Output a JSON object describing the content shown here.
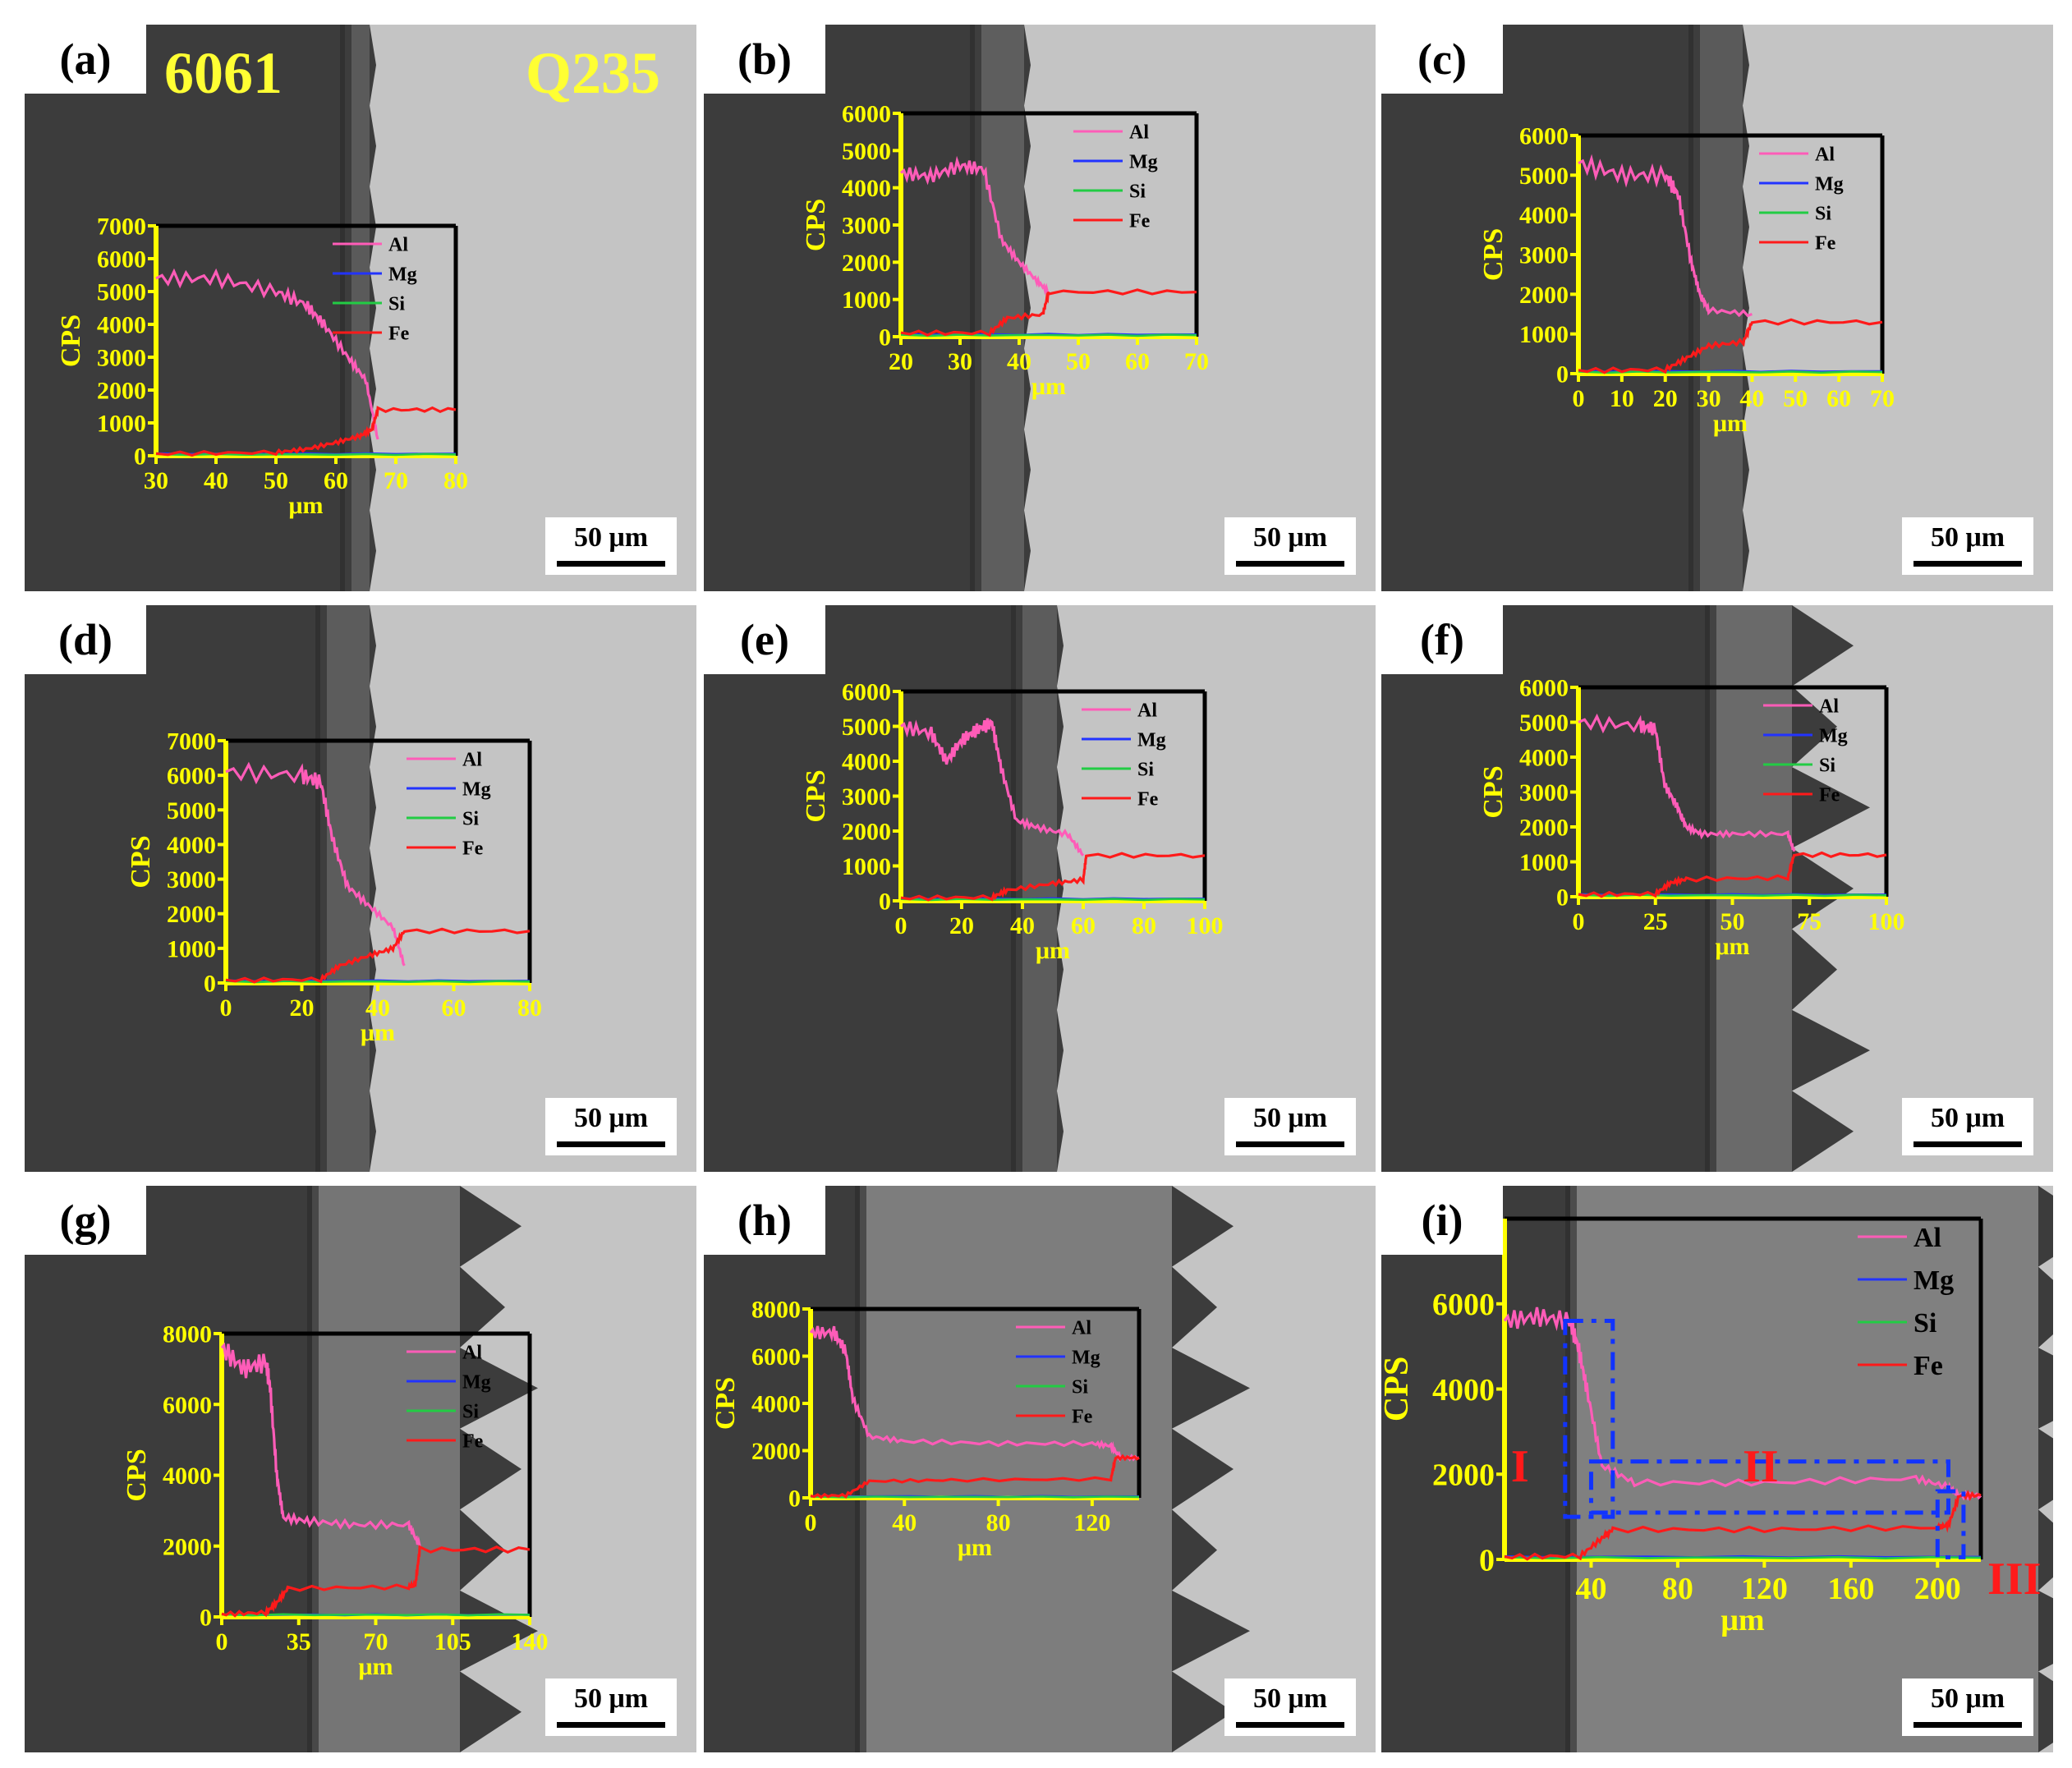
{
  "figure": {
    "labels": {
      "alloy_left": "6061",
      "alloy_right": "Q235"
    },
    "colors": {
      "Al": "#ff5cb8",
      "Mg": "#2233ff",
      "Si": "#22cc44",
      "Fe": "#ff1a1a",
      "axis": "#ffff00"
    },
    "region_labels": [
      "I",
      "II",
      "III"
    ]
  },
  "chart_data": [
    {
      "panel": "(a)",
      "type": "line",
      "scale_bar": "50 μm",
      "ylabel": "CPS",
      "xlabel": "μm",
      "xlim": [
        30,
        80
      ],
      "ylim": [
        0,
        7000
      ],
      "xticks": [
        30,
        40,
        50,
        60,
        70,
        80
      ],
      "yticks": [
        0,
        1000,
        2000,
        3000,
        4000,
        5000,
        6000,
        7000
      ],
      "series": [
        {
          "name": "Al",
          "x": [
            30,
            40,
            50,
            55,
            58,
            62,
            65,
            67
          ],
          "y": [
            5400,
            5400,
            5000,
            4600,
            4000,
            3000,
            2300,
            500
          ]
        },
        {
          "name": "Mg",
          "x": [
            30,
            80
          ],
          "y": [
            60,
            60
          ]
        },
        {
          "name": "Si",
          "x": [
            30,
            80
          ],
          "y": [
            40,
            40
          ]
        },
        {
          "name": "Fe",
          "x": [
            30,
            50,
            55,
            60,
            64,
            66,
            67,
            80
          ],
          "y": [
            60,
            100,
            200,
            400,
            600,
            800,
            1400,
            1400
          ]
        }
      ]
    },
    {
      "panel": "(b)",
      "type": "line",
      "scale_bar": "50 μm",
      "ylabel": "CPS",
      "xlabel": "μm",
      "xlim": [
        20,
        70
      ],
      "ylim": [
        0,
        6000
      ],
      "xticks": [
        20,
        30,
        40,
        50,
        60,
        70
      ],
      "yticks": [
        0,
        1000,
        2000,
        3000,
        4000,
        5000,
        6000
      ],
      "series": [
        {
          "name": "Al",
          "x": [
            20,
            25,
            30,
            34,
            37,
            40,
            43,
            45
          ],
          "y": [
            4400,
            4300,
            4600,
            4500,
            2600,
            2000,
            1500,
            1200
          ]
        },
        {
          "name": "Mg",
          "x": [
            20,
            70
          ],
          "y": [
            60,
            60
          ]
        },
        {
          "name": "Si",
          "x": [
            20,
            70
          ],
          "y": [
            40,
            40
          ]
        },
        {
          "name": "Fe",
          "x": [
            20,
            35,
            38,
            44,
            45,
            70
          ],
          "y": [
            100,
            100,
            500,
            600,
            1200,
            1200
          ]
        }
      ]
    },
    {
      "panel": "(c)",
      "type": "line",
      "scale_bar": "50 μm",
      "ylabel": "CPS",
      "xlabel": "μm",
      "xlim": [
        0,
        70
      ],
      "ylim": [
        0,
        6000
      ],
      "xticks": [
        0,
        10,
        20,
        30,
        40,
        50,
        60,
        70
      ],
      "yticks": [
        0,
        1000,
        2000,
        3000,
        4000,
        5000,
        6000
      ],
      "series": [
        {
          "name": "Al",
          "x": [
            0,
            10,
            20,
            23,
            26,
            28,
            30,
            40
          ],
          "y": [
            5300,
            5000,
            5000,
            4500,
            2800,
            2000,
            1600,
            1500
          ]
        },
        {
          "name": "Mg",
          "x": [
            0,
            70
          ],
          "y": [
            60,
            60
          ]
        },
        {
          "name": "Si",
          "x": [
            0,
            70
          ],
          "y": [
            40,
            40
          ]
        },
        {
          "name": "Fe",
          "x": [
            0,
            20,
            25,
            30,
            38,
            40,
            70
          ],
          "y": [
            80,
            100,
            400,
            700,
            800,
            1300,
            1300
          ]
        }
      ]
    },
    {
      "panel": "(d)",
      "type": "line",
      "scale_bar": "50 μm",
      "ylabel": "CPS",
      "xlabel": "μm",
      "xlim": [
        0,
        80
      ],
      "ylim": [
        0,
        7000
      ],
      "xticks": [
        0,
        20,
        40,
        60,
        80
      ],
      "yticks": [
        0,
        1000,
        2000,
        3000,
        4000,
        5000,
        6000,
        7000
      ],
      "series": [
        {
          "name": "Al",
          "x": [
            0,
            20,
            25,
            28,
            32,
            38,
            44,
            47
          ],
          "y": [
            6100,
            6000,
            5800,
            4200,
            2800,
            2200,
            1600,
            500
          ]
        },
        {
          "name": "Mg",
          "x": [
            0,
            80
          ],
          "y": [
            60,
            60
          ]
        },
        {
          "name": "Si",
          "x": [
            0,
            80
          ],
          "y": [
            40,
            40
          ]
        },
        {
          "name": "Fe",
          "x": [
            0,
            25,
            30,
            38,
            44,
            47,
            80
          ],
          "y": [
            80,
            100,
            500,
            800,
            1000,
            1500,
            1500
          ]
        }
      ]
    },
    {
      "panel": "(e)",
      "type": "line",
      "scale_bar": "50 μm",
      "ylabel": "CPS",
      "xlabel": "μm",
      "xlim": [
        0,
        100
      ],
      "ylim": [
        0,
        6000
      ],
      "xticks": [
        0,
        20,
        40,
        60,
        80,
        100
      ],
      "yticks": [
        0,
        1000,
        2000,
        3000,
        4000,
        5000,
        6000
      ],
      "series": [
        {
          "name": "Al",
          "x": [
            0,
            10,
            15,
            20,
            25,
            30,
            33,
            38,
            45,
            55,
            60
          ],
          "y": [
            5000,
            4800,
            4000,
            4600,
            4900,
            5100,
            3800,
            2300,
            2100,
            1900,
            1300
          ]
        },
        {
          "name": "Mg",
          "x": [
            0,
            100
          ],
          "y": [
            60,
            60
          ]
        },
        {
          "name": "Si",
          "x": [
            0,
            100
          ],
          "y": [
            40,
            40
          ]
        },
        {
          "name": "Fe",
          "x": [
            0,
            30,
            35,
            50,
            60,
            61,
            100
          ],
          "y": [
            80,
            100,
            300,
            500,
            600,
            1300,
            1300
          ]
        }
      ]
    },
    {
      "panel": "(f)",
      "type": "line",
      "scale_bar": "50 μm",
      "ylabel": "CPS",
      "xlabel": "μm",
      "xlim": [
        0,
        100
      ],
      "ylim": [
        0,
        6000
      ],
      "xticks": [
        0,
        25,
        50,
        75,
        100
      ],
      "yticks": [
        0,
        1000,
        2000,
        3000,
        4000,
        5000,
        6000
      ],
      "series": [
        {
          "name": "Al",
          "x": [
            0,
            20,
            25,
            28,
            32,
            35,
            40,
            50,
            68,
            70
          ],
          "y": [
            5000,
            4900,
            4800,
            3200,
            2600,
            2000,
            1800,
            1800,
            1800,
            1300
          ]
        },
        {
          "name": "Mg",
          "x": [
            0,
            100
          ],
          "y": [
            60,
            60
          ]
        },
        {
          "name": "Si",
          "x": [
            0,
            100
          ],
          "y": [
            40,
            40
          ]
        },
        {
          "name": "Fe",
          "x": [
            0,
            25,
            30,
            35,
            68,
            70,
            100
          ],
          "y": [
            60,
            80,
            400,
            500,
            550,
            1200,
            1200
          ]
        }
      ]
    },
    {
      "panel": "(g)",
      "type": "line",
      "scale_bar": "50 μm",
      "ylabel": "CPS",
      "xlabel": "μm",
      "xlim": [
        0,
        140
      ],
      "ylim": [
        0,
        8000
      ],
      "xticks": [
        0,
        35,
        70,
        105,
        140
      ],
      "yticks": [
        0,
        2000,
        4000,
        6000,
        8000
      ],
      "series": [
        {
          "name": "Al",
          "x": [
            0,
            10,
            20,
            22,
            25,
            28,
            40,
            60,
            85,
            90
          ],
          "y": [
            7600,
            7000,
            7200,
            6500,
            4000,
            2800,
            2700,
            2600,
            2600,
            2000
          ]
        },
        {
          "name": "Mg",
          "x": [
            0,
            140
          ],
          "y": [
            60,
            60
          ]
        },
        {
          "name": "Si",
          "x": [
            0,
            140
          ],
          "y": [
            60,
            60
          ]
        },
        {
          "name": "Fe",
          "x": [
            0,
            20,
            25,
            30,
            85,
            88,
            90,
            140
          ],
          "y": [
            80,
            120,
            400,
            800,
            850,
            900,
            1900,
            1900
          ]
        }
      ]
    },
    {
      "panel": "(h)",
      "type": "line",
      "scale_bar": "50 μm",
      "ylabel": "CPS",
      "xlabel": "μm",
      "xlim": [
        0,
        140
      ],
      "ylim": [
        0,
        8000
      ],
      "xticks": [
        0,
        40,
        80,
        120
      ],
      "yticks": [
        0,
        2000,
        4000,
        6000,
        8000
      ],
      "series": [
        {
          "name": "Al",
          "x": [
            0,
            10,
            15,
            18,
            25,
            40,
            80,
            120,
            128,
            132,
            140
          ],
          "y": [
            7000,
            7000,
            6200,
            4200,
            2600,
            2400,
            2300,
            2300,
            2200,
            1700,
            1700
          ]
        },
        {
          "name": "Mg",
          "x": [
            0,
            140
          ],
          "y": [
            60,
            60
          ]
        },
        {
          "name": "Si",
          "x": [
            0,
            140
          ],
          "y": [
            40,
            40
          ]
        },
        {
          "name": "Fe",
          "x": [
            0,
            15,
            25,
            60,
            128,
            130,
            140
          ],
          "y": [
            80,
            100,
            700,
            750,
            800,
            1700,
            1700
          ]
        }
      ]
    },
    {
      "panel": "(i)",
      "type": "line",
      "scale_bar": "50 μm",
      "ylabel": "CPS",
      "xlabel": "μm",
      "xlim": [
        0,
        220
      ],
      "ylim": [
        0,
        8000
      ],
      "xticks": [
        40,
        80,
        120,
        160,
        200
      ],
      "yticks": [
        0,
        2000,
        4000,
        6000
      ],
      "series": [
        {
          "name": "Al",
          "x": [
            0,
            15,
            30,
            34,
            38,
            45,
            60,
            120,
            190,
            205,
            210,
            220
          ],
          "y": [
            5600,
            5700,
            5600,
            5000,
            4000,
            2200,
            1800,
            1800,
            1900,
            1700,
            1500,
            1500
          ]
        },
        {
          "name": "Mg",
          "x": [
            0,
            220
          ],
          "y": [
            60,
            60
          ]
        },
        {
          "name": "Si",
          "x": [
            0,
            220
          ],
          "y": [
            40,
            40
          ]
        },
        {
          "name": "Fe",
          "x": [
            0,
            35,
            45,
            50,
            120,
            200,
            205,
            210,
            220
          ],
          "y": [
            60,
            80,
            500,
            700,
            700,
            750,
            800,
            1500,
            1500
          ]
        }
      ]
    }
  ]
}
